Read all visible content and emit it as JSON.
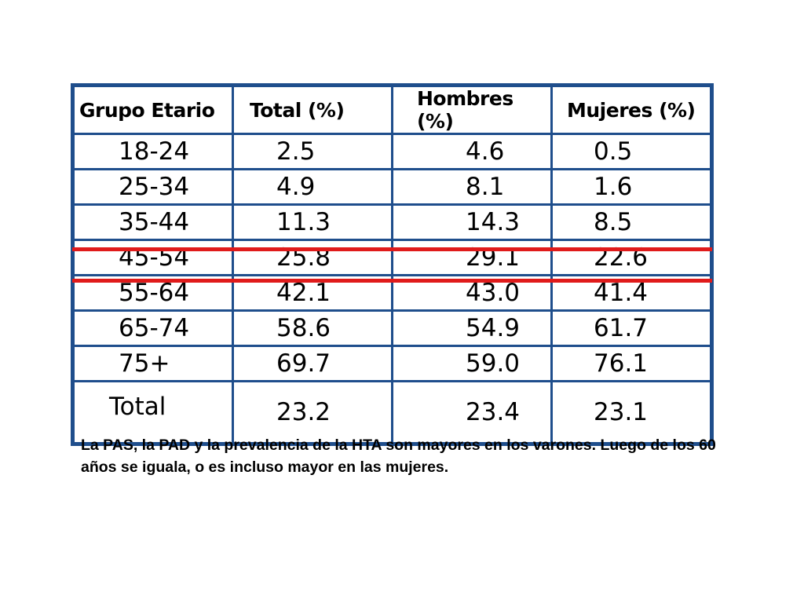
{
  "table": {
    "headers": [
      "Grupo Etario",
      "Total (%)",
      "Hombres (%)",
      "Mujeres (%)"
    ],
    "rows": [
      [
        "18-24",
        "2.5",
        "4.6",
        "0.5"
      ],
      [
        "25-34",
        "4.9",
        "8.1",
        "1.6"
      ],
      [
        "35-44",
        "11.3",
        "14.3",
        "8.5"
      ],
      [
        "45-54",
        "25.8",
        "29.1",
        "22.6"
      ],
      [
        "55-64",
        "42.1",
        "43.0",
        "41.4"
      ],
      [
        "65-74",
        "58.6",
        "54.9",
        "61.7"
      ],
      [
        "75+",
        "69.7",
        "59.0",
        "76.1"
      ],
      [
        "Total",
        "23.2",
        "23.4",
        "23.1"
      ]
    ],
    "highlighted_row": "55-64",
    "highlight_color": "#e01b1b",
    "border_color": "#1f4e8c"
  },
  "caption": "La PAS, la PAD y la prevalencia de la HTA son mayores en los varones. Luego de los 60 años se iguala, o es incluso mayor en las mujeres."
}
